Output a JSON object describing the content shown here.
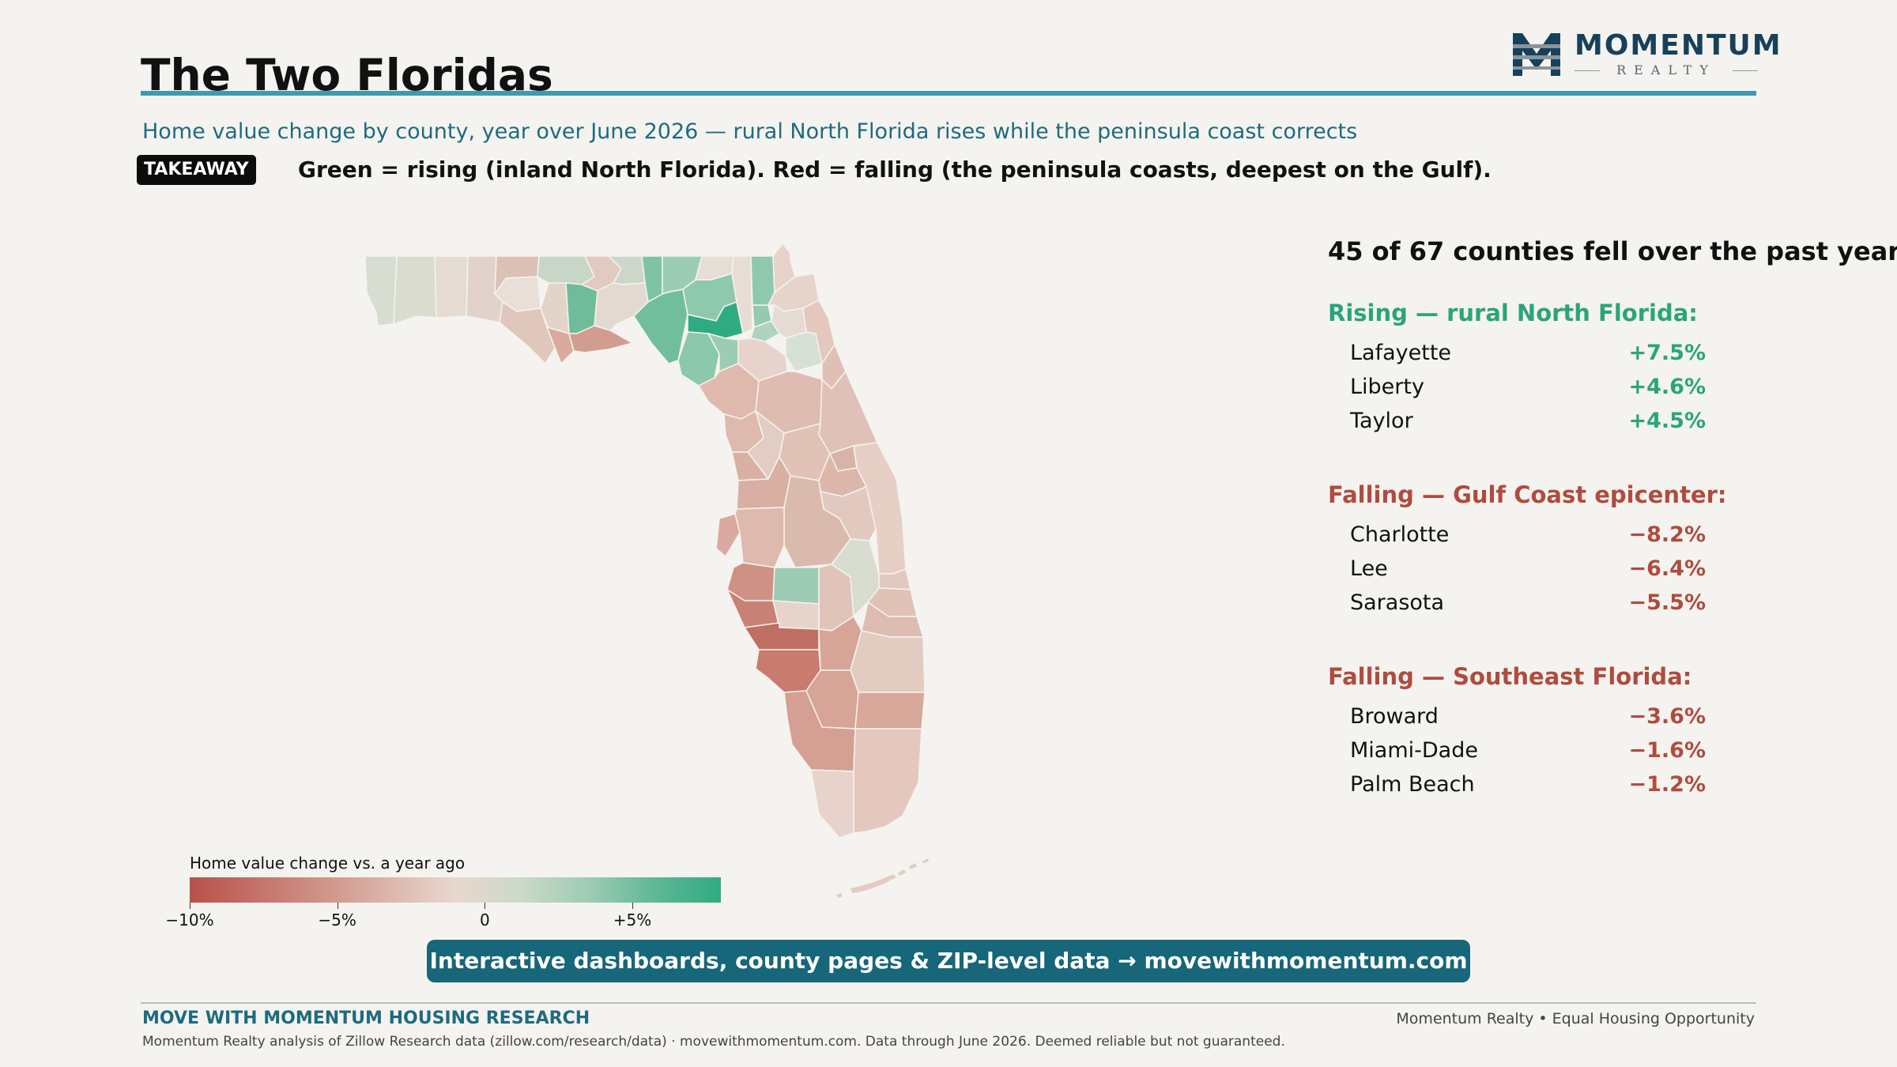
{
  "header": {
    "title": "The Two Floridas",
    "subtitle": "Home value change by county, year over June 2026 — rural North Florida rises while the peninsula coast corrects",
    "takeaway_badge": "TAKEAWAY",
    "takeaway_text": "Green = rising (inland North Florida). Red = falling (the peninsula coasts, deepest on the Gulf)."
  },
  "logo": {
    "word": "MOMENTUM",
    "sub": "REALTY",
    "colors": {
      "navy": "#17415a",
      "gray": "#8a949b"
    }
  },
  "legend": {
    "title": "Home value change vs. a year ago",
    "ticks": [
      {
        "label": "−10%",
        "value": -10
      },
      {
        "label": "−5%",
        "value": -5
      },
      {
        "label": "0",
        "value": 0
      },
      {
        "label": "+5%",
        "value": 5
      }
    ],
    "range": [
      -10,
      8
    ],
    "colors": {
      "falling": "#b8514a",
      "neutral": "#e8d8cf",
      "rising": "#2fab82"
    }
  },
  "panel": {
    "headline": "45 of 67 counties fell over the past year",
    "groups": [
      {
        "heading": "Rising — rural North Florida:",
        "tone": "green",
        "rows": [
          {
            "name": "Lafayette",
            "value": "+7.5%"
          },
          {
            "name": "Liberty",
            "value": "+4.6%"
          },
          {
            "name": "Taylor",
            "value": "+4.5%"
          }
        ]
      },
      {
        "heading": "Falling — Gulf Coast epicenter:",
        "tone": "red",
        "rows": [
          {
            "name": "Charlotte",
            "value": "−8.2%"
          },
          {
            "name": "Lee",
            "value": "−6.4%"
          },
          {
            "name": "Sarasota",
            "value": "−5.5%"
          }
        ]
      },
      {
        "heading": "Falling — Southeast Florida:",
        "tone": "red",
        "rows": [
          {
            "name": "Broward",
            "value": "−3.6%"
          },
          {
            "name": "Miami-Dade",
            "value": "−1.6%"
          },
          {
            "name": "Palm Beach",
            "value": "−1.2%"
          }
        ]
      }
    ]
  },
  "cta": {
    "label": "Interactive dashboards, county pages & ZIP-level data  →  movewithmomentum.com"
  },
  "footer": {
    "brand": "MOVE WITH MOMENTUM HOUSING RESEARCH",
    "right": "Momentum Realty  •  Equal Housing Opportunity",
    "source": "Momentum Realty analysis of Zillow Research data (zillow.com/research/data) · movewithmomentum.com. Data through June 2026. Deemed reliable but not guaranteed."
  },
  "colors": {
    "accent_rule": "#3d9bb0",
    "teal_text": "#1d6b80",
    "cta_bg": "#17667a",
    "background": "#f5f3ef"
  }
}
